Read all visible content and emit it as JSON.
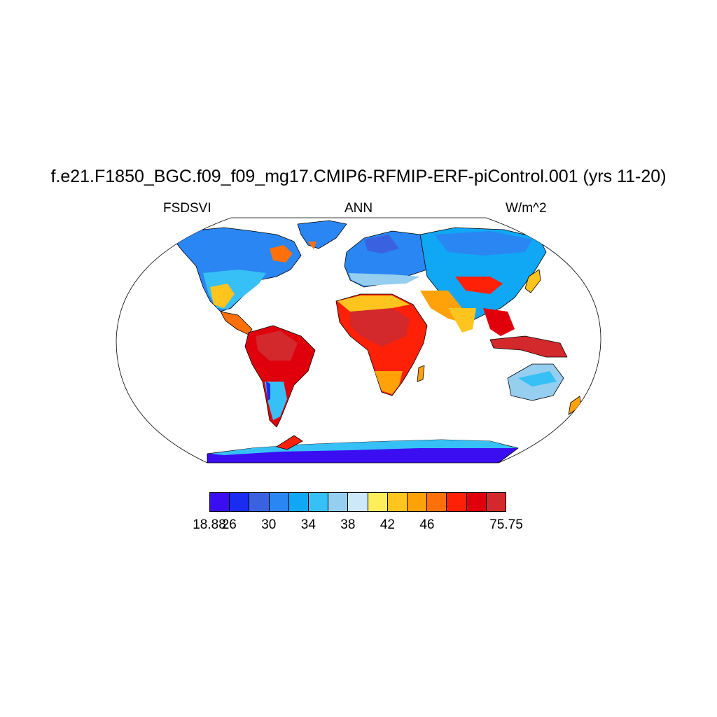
{
  "title": "f.e21.F1850_BGC.f09_f09_mg17.CMIP6-RFMIP-ERF-piControl.001 (yrs 11-20)",
  "left_label": "FSDSVI",
  "center_label": "ANN",
  "right_label": "W/m^2",
  "colorbar": {
    "colors": [
      "#3b0ef2",
      "#1a2cf0",
      "#3a62e0",
      "#2a86f2",
      "#10a8f5",
      "#36c0f5",
      "#96cef0",
      "#cde8f8",
      "#ffee5c",
      "#ffc41e",
      "#ffa20a",
      "#ff7008",
      "#ff2008",
      "#e0000c",
      "#d3282c"
    ],
    "labels": [
      {
        "text": "18.88",
        "edge": 0
      },
      {
        "text": "26",
        "edge": 1
      },
      {
        "text": "30",
        "edge": 3
      },
      {
        "text": "34",
        "edge": 5
      },
      {
        "text": "38",
        "edge": 7
      },
      {
        "text": "42",
        "edge": 9
      },
      {
        "text": "46",
        "edge": 11
      },
      {
        "text": "75.75",
        "edge": 15
      }
    ]
  }
}
